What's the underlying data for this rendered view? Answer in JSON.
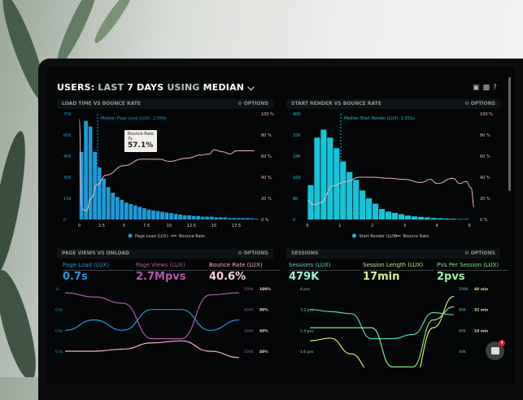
{
  "header": {
    "title_parts": [
      "USERS:",
      "LAST",
      "7 DAYS",
      "USING",
      "MEDIAN"
    ],
    "chevron": "chevron-down-icon",
    "icons": [
      "desktop-icon",
      "share-icon",
      "help-icon"
    ]
  },
  "colors": {
    "bar_blue": "#1e9bd8",
    "bar_cyan": "#17c3d8",
    "bounce": "#f2b3bd",
    "pageviews": "#b05aa8",
    "teal": "#4fd6b6",
    "green": "#7de88a",
    "yellow": "#d8e86a"
  },
  "panels": [
    {
      "title": "LOAD TIME VS BOUNCE RATE",
      "options": "OPTIONS"
    },
    {
      "title": "START RENDER VS BOUNCE RATE",
      "options": "OPTIONS"
    },
    {
      "title": "PAGE VIEWS VS ONLOAD",
      "options": "OPTIONS",
      "kpis": [
        {
          "label": "Page Load (LUX)",
          "value": "0.7s"
        },
        {
          "label": "Page Views (LUX)",
          "value": "2.7Mpvs"
        },
        {
          "label": "Bounce Rate (LUX)",
          "value": "40.6%"
        }
      ]
    },
    {
      "title": "SESSIONS",
      "options": "OPTIONS",
      "kpis": [
        {
          "label": "Sessions (LUX)",
          "value": "479K"
        },
        {
          "label": "Session Length (LUX)",
          "value": "17min"
        },
        {
          "label": "PVs Per Session (LUX)",
          "value": "2pvs"
        }
      ]
    }
  ],
  "tooltip": {
    "title": "Bounce Rate",
    "sub": "7s",
    "value": "57.1%"
  },
  "chat": {
    "badge": "4"
  },
  "chart_data": [
    {
      "type": "bar",
      "annotation": "Median Page Load (LUX): 2.056s",
      "median": 2.056,
      "y_ticks": [
        "0",
        "15K",
        "30K",
        "45K",
        "60K",
        "75K"
      ],
      "y_right_ticks": [
        "0 %",
        "20 %",
        "40 %",
        "60 %",
        "80 %",
        "100 %"
      ],
      "x_ticks": [
        "0",
        "2.5",
        "5",
        "7.5",
        "10",
        "12.5",
        "15",
        "17.5"
      ],
      "ylim": [
        0,
        75000
      ],
      "y2lim": [
        0,
        100
      ],
      "xlim": [
        -0.3,
        19.8
      ],
      "bin_width": 0.5,
      "legend": [
        "Page Load (LUX)",
        "Bounce Rate"
      ],
      "bars": [
        48000,
        70000,
        66000,
        48000,
        37000,
        29000,
        23000,
        19000,
        16000,
        14000,
        12000,
        11000,
        10000,
        9000,
        8000,
        7000,
        6500,
        6000,
        5500,
        5000,
        4500,
        4000,
        3500,
        3000,
        3000,
        2500,
        2500,
        2000,
        2000,
        2000,
        1500,
        1500,
        1500,
        1000,
        1000,
        1000,
        1000,
        1000,
        800,
        500
      ],
      "line": [
        [
          0,
          95
        ],
        [
          0.3,
          10
        ],
        [
          0.8,
          8
        ],
        [
          1.3,
          20
        ],
        [
          2,
          33
        ],
        [
          3,
          42
        ],
        [
          5,
          51
        ],
        [
          7,
          57.1
        ],
        [
          9,
          57
        ],
        [
          10,
          55
        ],
        [
          12,
          58
        ],
        [
          13.5,
          61
        ],
        [
          14.5,
          62
        ],
        [
          15,
          66
        ],
        [
          16,
          64
        ],
        [
          16.8,
          62
        ],
        [
          17.5,
          65
        ],
        [
          19.5,
          65
        ]
      ]
    },
    {
      "type": "bar",
      "annotation": "Median Start Render (LUX): 1.031s",
      "median": 1.031,
      "y_ticks": [
        "0",
        "8K",
        "16K",
        "24K",
        "32K",
        "40K"
      ],
      "y_right_ticks": [
        "0 %",
        "20 %",
        "40 %",
        "60 %",
        "80 %",
        "100 %"
      ],
      "x_ticks": [
        "0",
        "1",
        "2",
        "3",
        "4",
        "5"
      ],
      "ylim": [
        0,
        40000
      ],
      "y2lim": [
        0,
        100
      ],
      "xlim": [
        -0.05,
        5.2
      ],
      "bin_width": 0.2,
      "legend": [
        "Start Render (LUX)",
        "Bounce Rate"
      ],
      "bars": [
        13000,
        31000,
        34000,
        31000,
        27000,
        22000,
        18000,
        15000,
        11000,
        8000,
        6000,
        4000,
        3000,
        2500,
        2000,
        1500,
        1200,
        1000,
        800,
        600,
        500,
        400,
        300,
        200,
        200
      ],
      "line": [
        [
          0,
          18
        ],
        [
          0.2,
          14
        ],
        [
          0.4,
          16
        ],
        [
          0.8,
          32
        ],
        [
          1.2,
          36
        ],
        [
          1.6,
          40
        ],
        [
          2,
          40
        ],
        [
          2.5,
          39
        ],
        [
          3,
          38
        ],
        [
          3.5,
          35
        ],
        [
          3.8,
          38
        ],
        [
          4,
          34
        ],
        [
          4.5,
          39
        ],
        [
          4.7,
          34
        ],
        [
          4.9,
          36
        ],
        [
          5.05,
          30
        ],
        [
          5.15,
          12
        ]
      ]
    },
    {
      "type": "line",
      "y_ticks": [
        "0.4s",
        "0.6s",
        "0.8s",
        "1s"
      ],
      "y_right_ticks": [
        "200K",
        "300K",
        "400K",
        "500K"
      ],
      "y_right2_ticks": [
        "40%",
        "60%",
        "80%",
        "100%"
      ],
      "series": [
        {
          "name": "Page Load (LUX)",
          "axis": [
            0.4,
            1
          ],
          "values": [
            0.6,
            0.7,
            0.6,
            0.8,
            0.8,
            0.6,
            0.7
          ]
        },
        {
          "name": "Page Views (LUX)",
          "axis": [
            200,
            500
          ],
          "values": [
            480,
            460,
            430,
            260,
            260,
            470,
            480
          ]
        },
        {
          "name": "Bounce Rate (LUX)",
          "axis": [
            40,
            100
          ],
          "values": [
            40,
            40,
            42,
            48,
            50,
            40,
            34
          ]
        }
      ]
    },
    {
      "type": "line",
      "y_ticks": [
        "1.6 pvs",
        "2.4 pvs",
        "3.2 pvs",
        "4 pvs"
      ],
      "y_right_ticks": [
        "40K",
        "60K",
        "80K",
        "100K"
      ],
      "y_right2_ticks": [
        "24 min",
        "32 min",
        "40 min"
      ],
      "series": [
        {
          "name": "Sessions (LUX)",
          "axis": [
            40,
            100
          ],
          "values": [
            80,
            78,
            76,
            52,
            52,
            56,
            77,
            75
          ]
        },
        {
          "name": "Session Length (LUX)",
          "axis": [
            16,
            40
          ],
          "values": [
            25,
            25,
            25,
            25,
            10,
            10,
            28,
            33
          ]
        },
        {
          "name": "PVs Per Session (LUX)",
          "axis": [
            1.6,
            4
          ],
          "values": [
            2.0,
            2.1,
            1.5,
            0.8,
            0.5,
            0.5,
            2.5,
            3.7
          ]
        }
      ]
    }
  ]
}
